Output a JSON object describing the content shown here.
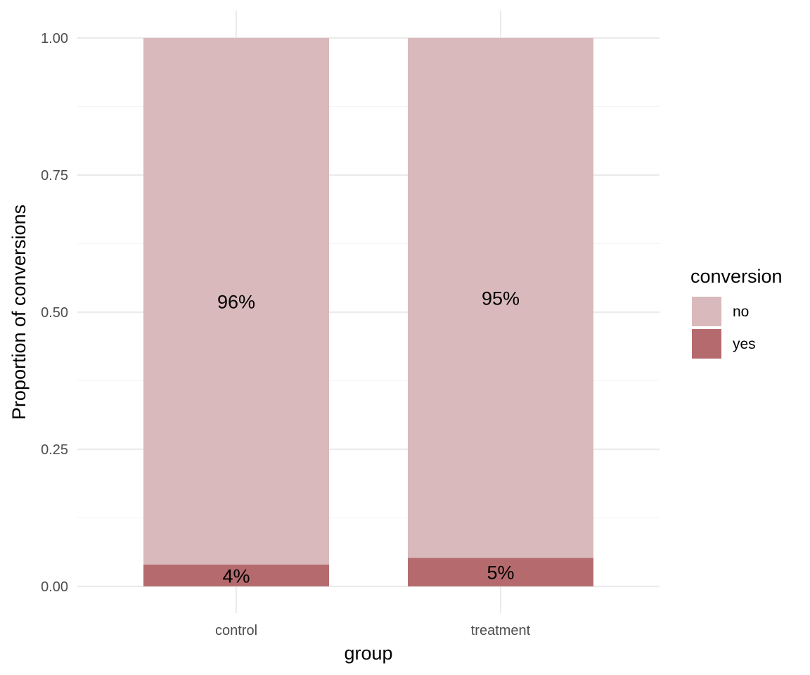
{
  "colors": {
    "no": "#d9b9bb",
    "yes": "#b56b6e",
    "grid_major": "#ebebeb",
    "grid_minor": "#f4f4f4"
  },
  "chart_data": {
    "type": "bar",
    "stacked": true,
    "categories": [
      "control",
      "treatment"
    ],
    "series": [
      {
        "name": "no",
        "values": [
          0.96,
          0.948
        ],
        "labels": [
          "96%",
          "95%"
        ]
      },
      {
        "name": "yes",
        "values": [
          0.04,
          0.052
        ],
        "labels": [
          "4%",
          "5%"
        ]
      }
    ],
    "xlabel": "group",
    "ylabel": "Proportion of conversions",
    "ylim": [
      0,
      1
    ],
    "yticks": [
      0,
      0.25,
      0.5,
      0.75,
      1
    ],
    "ytick_labels": [
      "0.00",
      "0.25",
      "0.50",
      "0.75",
      "1.00"
    ],
    "grid": true,
    "legend": {
      "title": "conversion",
      "position": "right",
      "entries": [
        "no",
        "yes"
      ]
    }
  }
}
